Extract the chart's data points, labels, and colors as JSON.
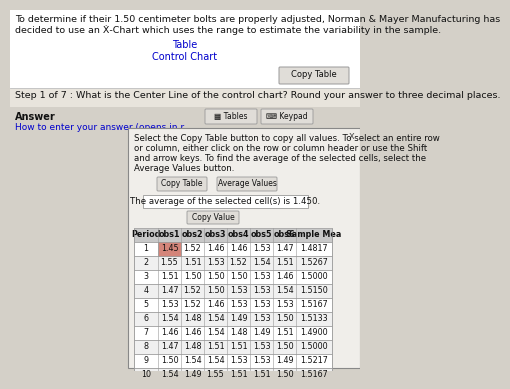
{
  "title_text1": "To determine if their 1.50 centimeter bolts are properly adjusted, Norman & Mayer Manufacturing has",
  "title_text2": "decided to use an Ẋ-Chart which uses the range to estimate the variability in the sample.",
  "link1": "Table",
  "link2": "Control Chart",
  "copy_table_btn": "Copy Table",
  "step_text": "Step 1 of 7 : What is the Center Line of the control chart? Round your answer to three decimal places.",
  "answer_label": "Answer",
  "how_to_label": "How to enter your answer (opens in r",
  "tables_btn": "Tables",
  "keypad_btn": "Keypad",
  "close_x": "x",
  "popup_text1": "Select the Copy Table button to copy all values. To select an entire row",
  "popup_text2": "or column, either click on the row or column header or use the Shift",
  "popup_text3": "and arrow keys. To find the average of the selected cells, select the",
  "popup_text4": "Average Values button.",
  "copy_table_btn2": "Copy Table",
  "avg_values_btn": "Average Values",
  "avg_display": "The average of the selected cell(s) is 1.450.",
  "copy_value_btn": "Copy Value",
  "col_headers": [
    "Period",
    "obs1",
    "obs2",
    "obs3",
    "obs4",
    "obs5",
    "obs6",
    "Sample Mea"
  ],
  "table_data": [
    [
      1,
      1.45,
      1.52,
      1.46,
      1.46,
      1.53,
      1.47,
      "1.4817"
    ],
    [
      2,
      1.55,
      1.51,
      1.53,
      1.52,
      1.54,
      1.51,
      "1.5267"
    ],
    [
      3,
      1.51,
      1.5,
      1.5,
      1.5,
      1.53,
      1.46,
      "1.5000"
    ],
    [
      4,
      1.47,
      1.52,
      1.5,
      1.53,
      1.53,
      1.54,
      "1.5150"
    ],
    [
      5,
      1.53,
      1.52,
      1.46,
      1.53,
      1.53,
      1.53,
      "1.5167"
    ],
    [
      6,
      1.54,
      1.48,
      1.54,
      1.49,
      1.53,
      1.5,
      "1.5133"
    ],
    [
      7,
      1.46,
      1.46,
      1.54,
      1.48,
      1.49,
      1.51,
      "1.4900"
    ],
    [
      8,
      1.47,
      1.48,
      1.51,
      1.51,
      1.53,
      1.5,
      "1.5000"
    ],
    [
      9,
      1.5,
      1.54,
      1.54,
      1.53,
      1.53,
      1.49,
      "1.5217"
    ],
    [
      10,
      1.54,
      1.49,
      1.55,
      1.51,
      1.51,
      1.5,
      "1.5167"
    ]
  ],
  "highlighted_cell_row": 0,
  "highlighted_cell_col": 1,
  "highlight_color": "#d4857a",
  "bg_color": "#d4d0c8",
  "white": "#ffffff",
  "popup_bg": "#f0eeea",
  "header_bg": "#c8c8c8",
  "row_bg_even": "#ffffff",
  "row_bg_odd": "#f0f0f0",
  "border_color": "#999999",
  "button_color": "#e0ddd8",
  "link_color": "#0000cc",
  "text_color": "#111111",
  "gray_text": "#555555",
  "font_size_title": 6.8,
  "font_size_step": 6.8,
  "font_size_answer": 7.0,
  "font_size_popup": 6.2,
  "font_size_table": 5.8,
  "font_size_btn": 6.0
}
